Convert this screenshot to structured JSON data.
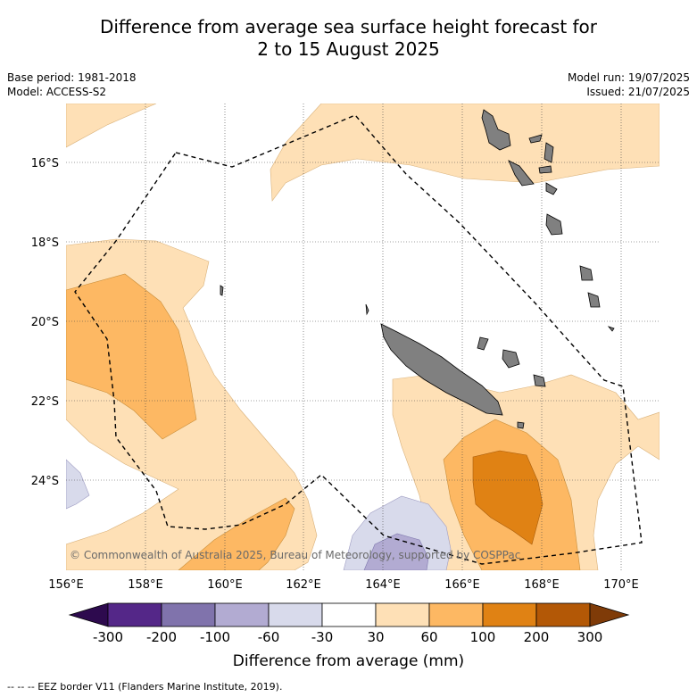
{
  "title": {
    "line1": "Difference from average sea surface height forecast for",
    "line2": "2 to 15 August 2025"
  },
  "meta": {
    "base_period": "Base period: 1981-2018",
    "model": "Model: ACCESS-S2",
    "model_run": "Model run: 19/07/2025",
    "issued": "Issued: 21/07/2025"
  },
  "map": {
    "lon_range": [
      156,
      171
    ],
    "lat_range": [
      -26.3,
      -14.8
    ],
    "lon_ticks": [
      "156°E",
      "158°E",
      "160°E",
      "162°E",
      "164°E",
      "166°E",
      "168°E",
      "170°E"
    ],
    "lat_ticks": [
      "16°S",
      "18°S",
      "20°S",
      "22°S",
      "24°S"
    ],
    "copyright": "© Commonwealth of Australia 2025, Bureau of Meteorology, supported by COSPPac"
  },
  "legend": {
    "title": "Difference from average (mm)",
    "ticks": [
      "-300",
      "-200",
      "-100",
      "-60",
      "-30",
      "30",
      "60",
      "100",
      "200",
      "300"
    ],
    "colors": [
      "#2d0a4e",
      "#542788",
      "#8073ac",
      "#b2abd2",
      "#d8daeb",
      "#ffffff",
      "#fee0b6",
      "#fdb863",
      "#e08214",
      "#b35806",
      "#7f3b08"
    ]
  },
  "footer": "-- -- -- EEZ border V11 (Flanders Marine Institute, 2019)."
}
